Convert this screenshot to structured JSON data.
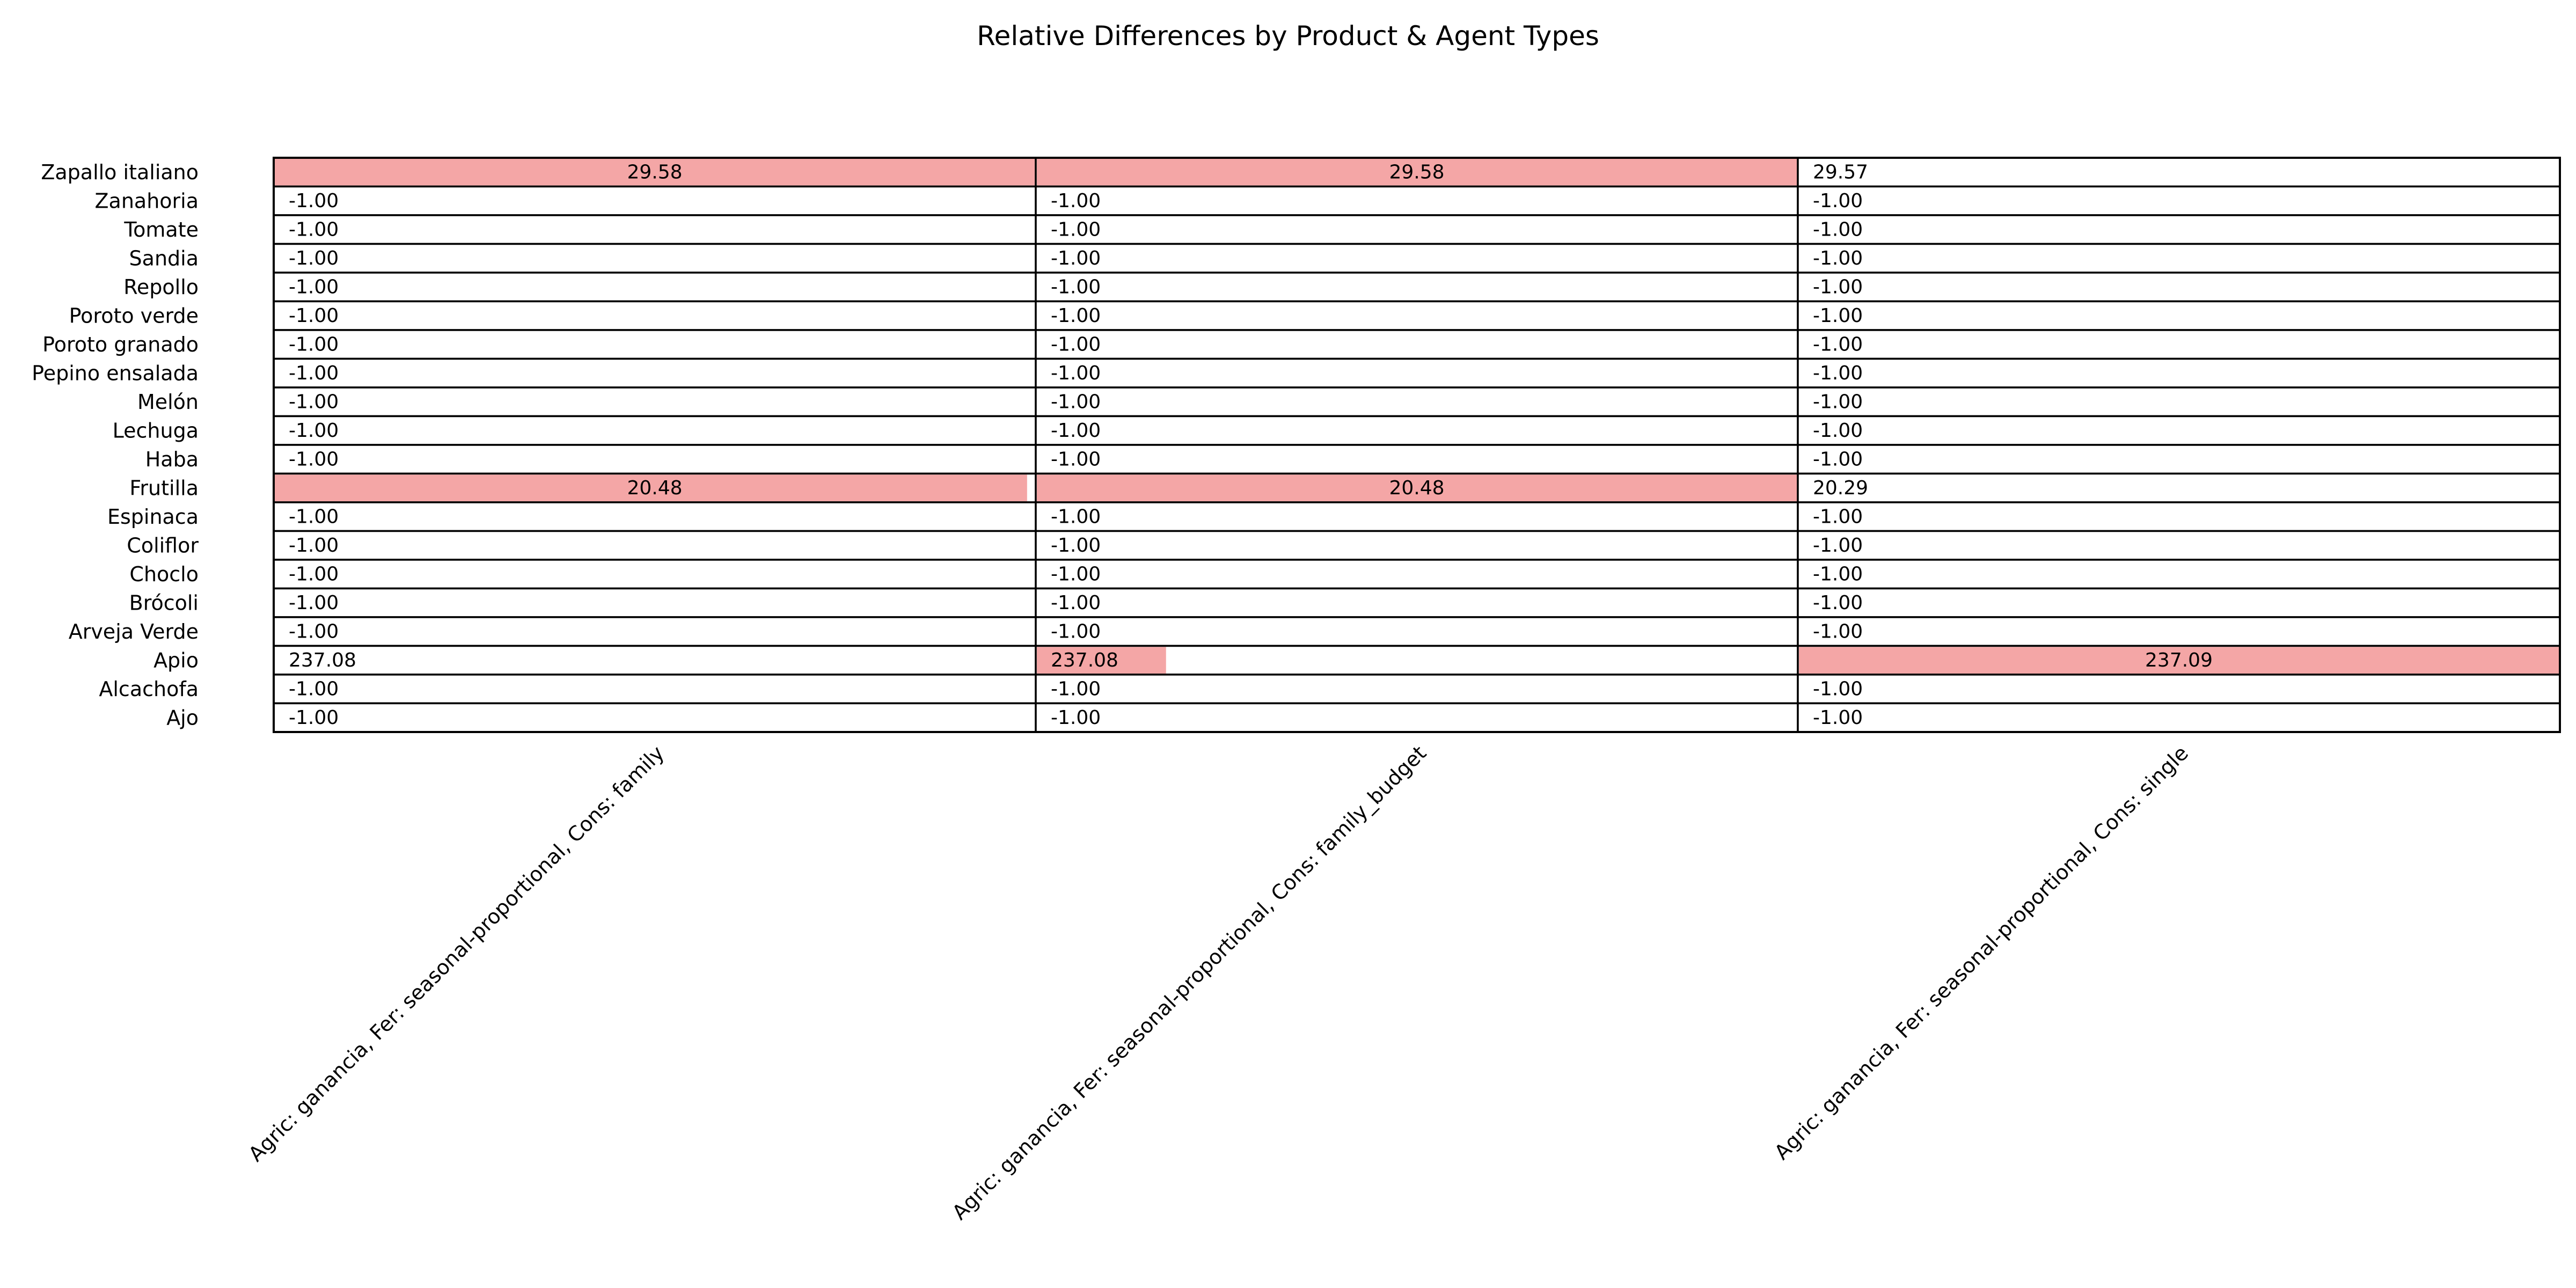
{
  "chart_data": {
    "type": "table",
    "title": "Relative Differences by Product & Agent Types",
    "highlight_color": "#f4a6a6",
    "border_color": "#000000",
    "columns": [
      "Agric: ganancia, Fer: seasonal-proportional, Cons: family",
      "Agric: ganancia, Fer: seasonal-proportional, Cons: family_budget",
      "Agric: ganancia, Fer: seasonal-proportional, Cons: single"
    ],
    "rows": [
      {
        "label": "Zapallo italiano",
        "values": [
          29.58,
          29.58,
          29.57
        ]
      },
      {
        "label": "Zanahoria",
        "values": [
          -1.0,
          -1.0,
          -1.0
        ]
      },
      {
        "label": "Tomate",
        "values": [
          -1.0,
          -1.0,
          -1.0
        ]
      },
      {
        "label": "Sandia",
        "values": [
          -1.0,
          -1.0,
          -1.0
        ]
      },
      {
        "label": "Repollo",
        "values": [
          -1.0,
          -1.0,
          -1.0
        ]
      },
      {
        "label": "Poroto verde",
        "values": [
          -1.0,
          -1.0,
          -1.0
        ]
      },
      {
        "label": "Poroto granado",
        "values": [
          -1.0,
          -1.0,
          -1.0
        ]
      },
      {
        "label": "Pepino ensalada",
        "values": [
          -1.0,
          -1.0,
          -1.0
        ]
      },
      {
        "label": "Melón",
        "values": [
          -1.0,
          -1.0,
          -1.0
        ]
      },
      {
        "label": "Lechuga",
        "values": [
          -1.0,
          -1.0,
          -1.0
        ]
      },
      {
        "label": "Haba",
        "values": [
          -1.0,
          -1.0,
          -1.0
        ]
      },
      {
        "label": "Frutilla",
        "values": [
          20.48,
          20.48,
          20.29
        ]
      },
      {
        "label": "Espinaca",
        "values": [
          -1.0,
          -1.0,
          -1.0
        ]
      },
      {
        "label": "Coliflor",
        "values": [
          -1.0,
          -1.0,
          -1.0
        ]
      },
      {
        "label": "Choclo",
        "values": [
          -1.0,
          -1.0,
          -1.0
        ]
      },
      {
        "label": "Brócoli",
        "values": [
          -1.0,
          -1.0,
          -1.0
        ]
      },
      {
        "label": "Arveja Verde",
        "values": [
          -1.0,
          -1.0,
          -1.0
        ]
      },
      {
        "label": "Apio",
        "values": [
          237.08,
          237.08,
          237.09
        ]
      },
      {
        "label": "Alcachofa",
        "values": [
          -1.0,
          -1.0,
          -1.0
        ]
      },
      {
        "label": "Ajo",
        "values": [
          -1.0,
          -1.0,
          -1.0
        ]
      }
    ],
    "bar_fill": [
      [
        1.0,
        1.0,
        0.0
      ],
      [
        0.0,
        0.0,
        0.0
      ],
      [
        0.0,
        0.0,
        0.0
      ],
      [
        0.0,
        0.0,
        0.0
      ],
      [
        0.0,
        0.0,
        0.0
      ],
      [
        0.0,
        0.0,
        0.0
      ],
      [
        0.0,
        0.0,
        0.0
      ],
      [
        0.0,
        0.0,
        0.0
      ],
      [
        0.0,
        0.0,
        0.0
      ],
      [
        0.0,
        0.0,
        0.0
      ],
      [
        0.0,
        0.0,
        0.0
      ],
      [
        0.99,
        1.0,
        0.0
      ],
      [
        0.0,
        0.0,
        0.0
      ],
      [
        0.0,
        0.0,
        0.0
      ],
      [
        0.0,
        0.0,
        0.0
      ],
      [
        0.0,
        0.0,
        0.0
      ],
      [
        0.0,
        0.0,
        0.0
      ],
      [
        0.0,
        0.17,
        1.0
      ],
      [
        0.0,
        0.0,
        0.0
      ],
      [
        0.0,
        0.0,
        0.0
      ]
    ],
    "value_format": "2 decimals",
    "value_label_position": "centered when cell highlighted, left otherwise",
    "column_label_rotation": "45 degrees"
  }
}
